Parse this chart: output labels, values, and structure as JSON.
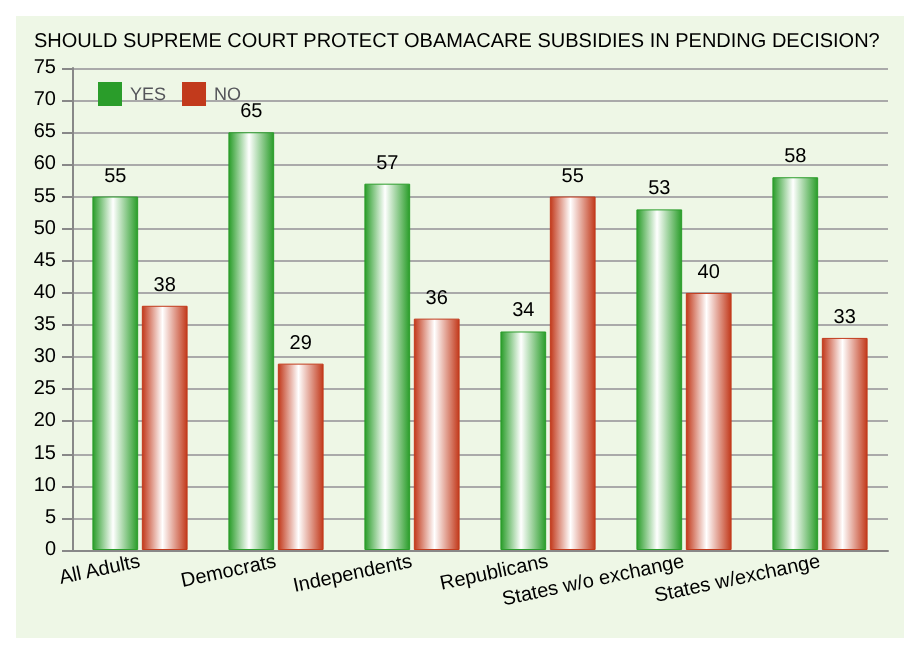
{
  "chart_data": {
    "type": "bar",
    "title": "SHOULD SUPREME COURT PROTECT OBAMACARE SUBSIDIES IN PENDING DECISION?",
    "categories": [
      "All Adults",
      "Democrats",
      "Independents",
      "Republicans",
      "States w/o exchange",
      "States w/exchange"
    ],
    "series": [
      {
        "name": "YES",
        "color": "#2a9d2a",
        "values": [
          55,
          65,
          57,
          34,
          53,
          58
        ]
      },
      {
        "name": "NO",
        "color": "#c23a1c",
        "values": [
          38,
          29,
          36,
          55,
          40,
          33
        ]
      }
    ],
    "ylim": [
      0,
      75
    ],
    "yticks": [
      0,
      5,
      10,
      15,
      20,
      25,
      30,
      35,
      40,
      45,
      50,
      55,
      60,
      65,
      70,
      75
    ],
    "grid": "y",
    "legend": "top left",
    "data_labels": true
  }
}
